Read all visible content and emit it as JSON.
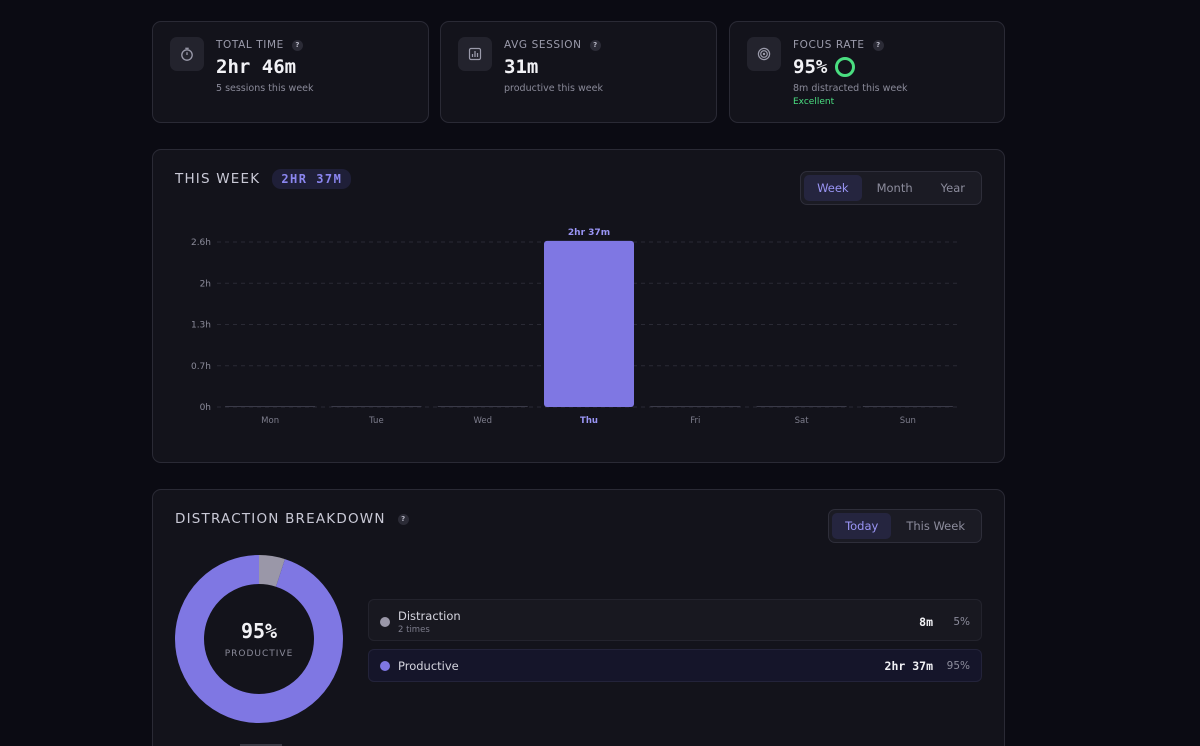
{
  "stats": [
    {
      "label": "TOTAL TIME",
      "value": "2hr 46m",
      "sub": "5 sessions this week",
      "icon": "stopwatch-icon"
    },
    {
      "label": "AVG SESSION",
      "value": "31m",
      "sub": "productive this week",
      "icon": "bar-chart-icon"
    },
    {
      "label": "FOCUS RATE",
      "value": "95%",
      "sub": "8m distracted this week",
      "extra": "Excellent",
      "icon": "target-icon"
    }
  ],
  "help_glyph": "?",
  "week": {
    "title": "THIS WEEK",
    "badge": "2HR 37M",
    "tabs": [
      "Week",
      "Month",
      "Year"
    ],
    "active_tab": "Week"
  },
  "chart_data": {
    "type": "bar",
    "categories": [
      "Mon",
      "Tue",
      "Wed",
      "Thu",
      "Fri",
      "Sat",
      "Sun"
    ],
    "values": [
      0,
      0,
      0,
      2.617,
      0,
      0,
      0
    ],
    "yticks": [
      "0h",
      "0.7h",
      "1.3h",
      "2h",
      "2.6h"
    ],
    "ytick_values": [
      0,
      0.65,
      1.3,
      1.95,
      2.6
    ],
    "ylim": [
      0,
      2.6
    ],
    "data_label": "2hr 37m",
    "highlight": "Thu",
    "bar_color": "#7f77e3",
    "grid": true
  },
  "breakdown": {
    "title": "DISTRACTION BREAKDOWN",
    "tabs": [
      "Today",
      "This Week"
    ],
    "active_tab": "Today",
    "center_value": "95%",
    "center_label": "PRODUCTIVE",
    "items": [
      {
        "name": "Distraction",
        "sub": "2 times",
        "time": "8m",
        "pct": "5%",
        "fraction": 0.05,
        "color": "#9a97a8"
      },
      {
        "name": "Productive",
        "time": "2hr 37m",
        "pct": "95%",
        "fraction": 0.95,
        "color": "#7f77e3"
      }
    ]
  }
}
